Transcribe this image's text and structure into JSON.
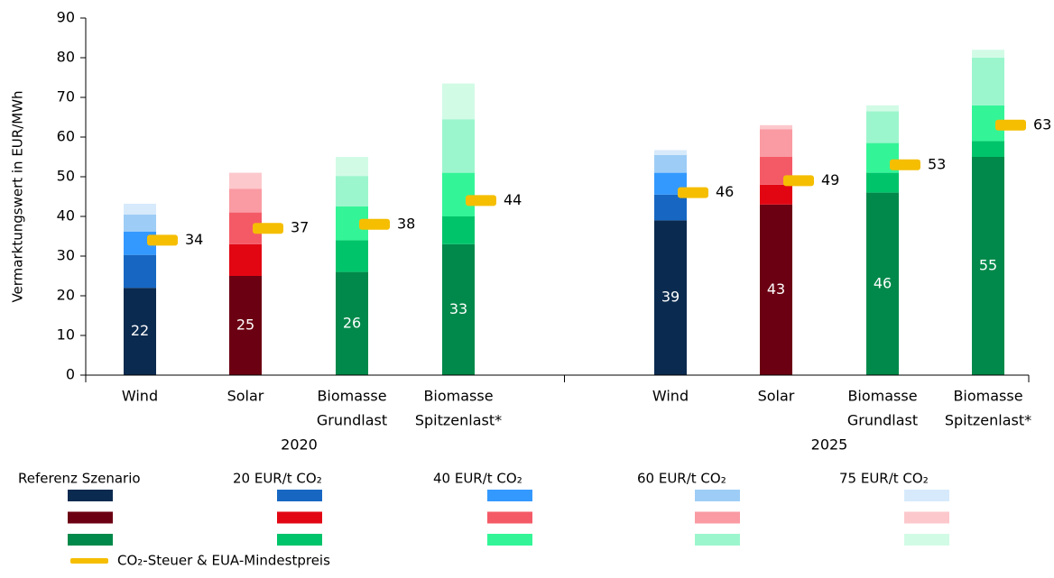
{
  "chart_data": {
    "type": "stacked_bar",
    "y_label": "Vermarktungswert  in EUR/MWh",
    "categories": [
      [
        "Wind"
      ],
      [
        "Solar"
      ],
      [
        "Biomasse",
        "Grundlast"
      ],
      [
        "Biomasse",
        "Spitzenlast*"
      ],
      [
        "Wind"
      ],
      [
        "Solar"
      ],
      [
        "Biomasse",
        "Grundlast"
      ],
      [
        "Biomasse",
        "Spitzenlast*"
      ]
    ],
    "groups": [
      "2020",
      "2025"
    ],
    "ylim": [
      0,
      90
    ],
    "yticks": [
      0,
      10,
      20,
      30,
      40,
      50,
      60,
      70,
      80,
      90
    ],
    "series": [
      {
        "name": "Referenz Szenario",
        "colors": [
          "#0b2a4f",
          "#6b0012",
          "#00894a",
          "#00894a",
          "#0b2a4f",
          "#6b0012",
          "#00894a",
          "#00894a"
        ],
        "values": [
          22,
          25,
          26,
          33,
          39,
          43,
          46,
          55
        ]
      },
      {
        "name": "20 EUR/t CO₂",
        "colors": [
          "#1767c2",
          "#e20613",
          "#00c46a",
          "#00c46a",
          "#1767c2",
          "#e20613",
          "#00c46a",
          "#00c46a"
        ],
        "values": [
          8.3,
          8,
          8,
          7,
          6.5,
          5,
          5,
          4
        ]
      },
      {
        "name": "40 EUR/t CO₂",
        "colors": [
          "#3399ff",
          "#f45a66",
          "#33f598",
          "#33f598",
          "#3399ff",
          "#f45a66",
          "#33f598",
          "#33f598"
        ],
        "values": [
          5.9,
          8,
          8.5,
          11,
          5.5,
          7,
          7.5,
          9
        ]
      },
      {
        "name": "60 EUR/t CO₂",
        "colors": [
          "#9dcdf6",
          "#fa9aa2",
          "#9cf6cd",
          "#9cf6cd",
          "#9dcdf6",
          "#fa9aa2",
          "#9cf6cd",
          "#9cf6cd"
        ],
        "values": [
          4.3,
          6,
          7.7,
          13.5,
          4.5,
          7,
          8,
          12
        ]
      },
      {
        "name": "75 EUR/t CO₂",
        "colors": [
          "#d6eafb",
          "#fcc8cc",
          "#d2fbe6",
          "#d2fbe6",
          "#d6eafb",
          "#fcc8cc",
          "#d2fbe6",
          "#d2fbe6"
        ],
        "values": [
          2.7,
          4,
          4.8,
          9,
          1.2,
          1,
          1.5,
          2
        ]
      }
    ],
    "markers": {
      "name": "CO₂-Steuer & EUA-Mindestpreis",
      "color": "#f5be00",
      "values": [
        34,
        37,
        38,
        44,
        46,
        49,
        53,
        63
      ]
    }
  }
}
